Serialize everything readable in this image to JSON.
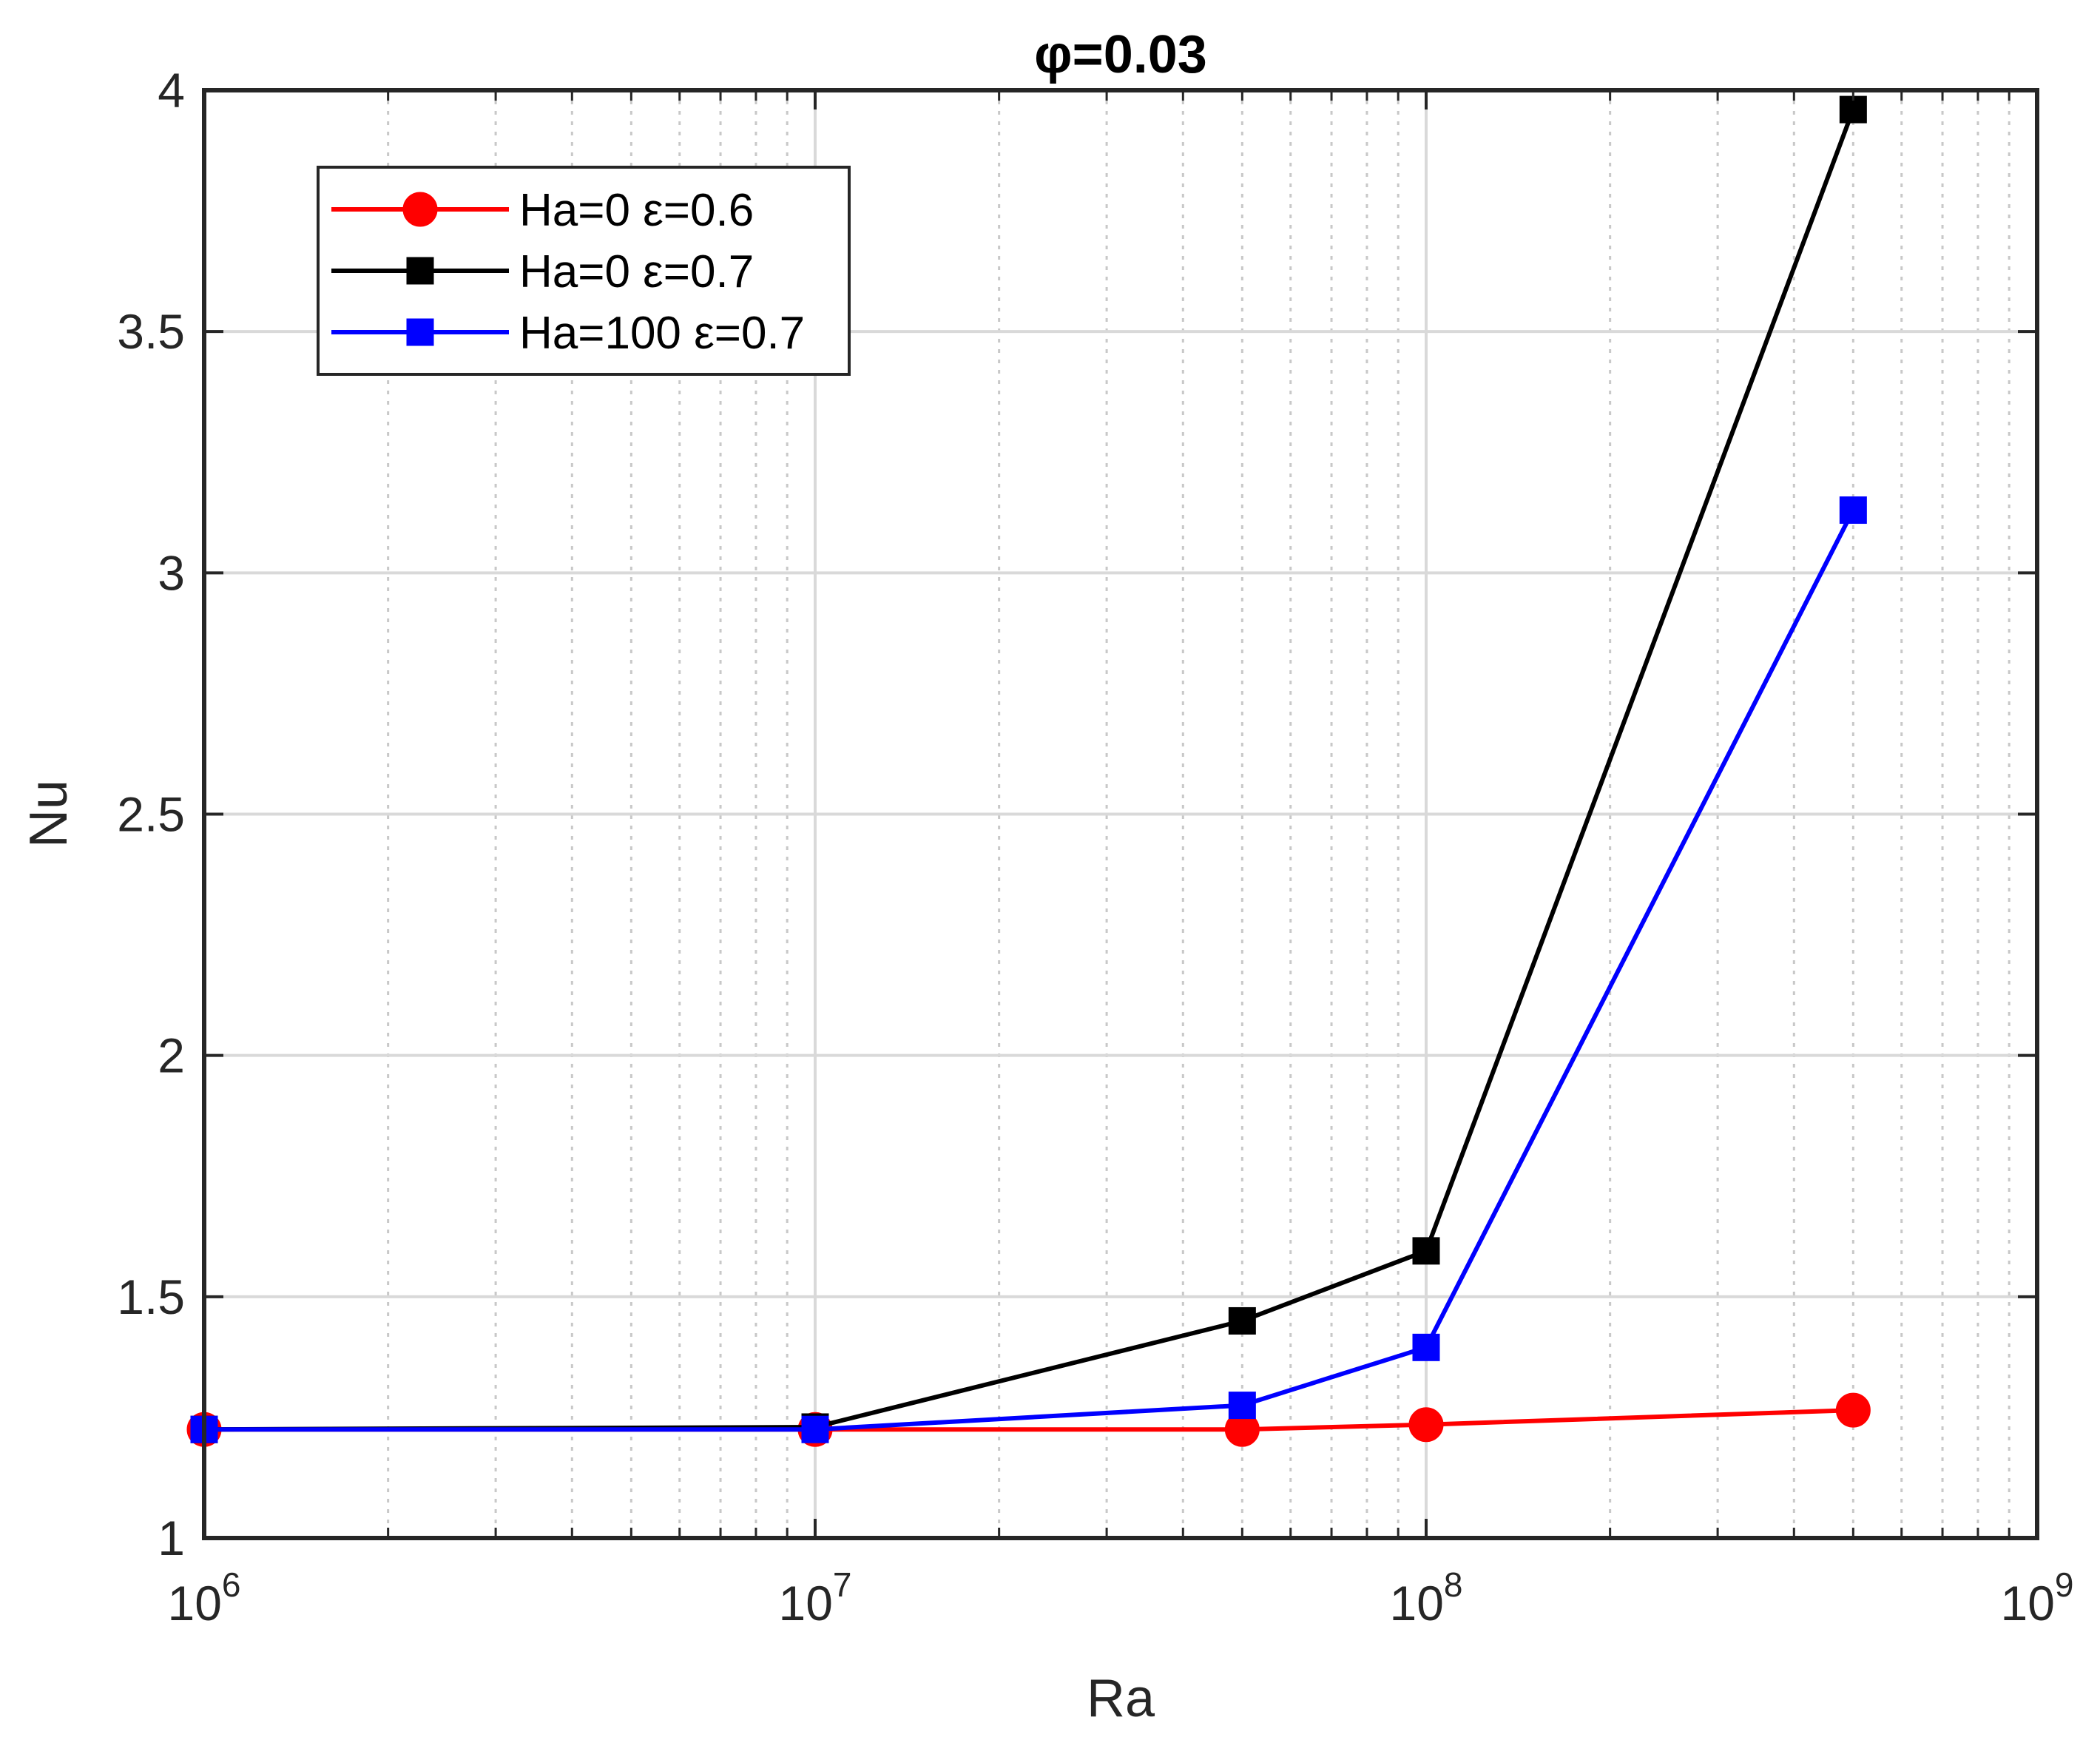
{
  "chart_data": {
    "type": "line",
    "title": "φ=0.03",
    "xlabel": "Ra",
    "ylabel": "Nu",
    "xscale": "log",
    "xlim": [
      1000000,
      1000000000
    ],
    "ylim": [
      1,
      4
    ],
    "grid": true,
    "x_tick_labels": [
      {
        "base": "10",
        "exp": "6",
        "value": 1000000
      },
      {
        "base": "10",
        "exp": "7",
        "value": 10000000
      },
      {
        "base": "10",
        "exp": "8",
        "value": 100000000
      },
      {
        "base": "10",
        "exp": "9",
        "value": 1000000000
      }
    ],
    "y_ticks": [
      1,
      1.5,
      2,
      2.5,
      3,
      3.5,
      4
    ],
    "y_tick_labels": [
      "1",
      "1.5",
      "2",
      "2.5",
      "3",
      "3.5",
      "4"
    ],
    "legend_position": "top-left",
    "series": [
      {
        "name": "Ha=0 ε=0.6",
        "color": "#ff0000",
        "marker": "circle",
        "x": [
          1000000,
          10000000,
          50000000,
          100000000,
          500000000
        ],
        "y": [
          1.225,
          1.225,
          1.225,
          1.235,
          1.265
        ]
      },
      {
        "name": "Ha=0 ε=0.7",
        "color": "#000000",
        "marker": "square",
        "x": [
          1000000,
          10000000,
          50000000,
          100000000,
          500000000
        ],
        "y": [
          1.225,
          1.23,
          1.45,
          1.595,
          3.96
        ]
      },
      {
        "name": "Ha=100 ε=0.7",
        "color": "#0000ff",
        "marker": "square",
        "x": [
          1000000,
          10000000,
          50000000,
          100000000,
          500000000
        ],
        "y": [
          1.225,
          1.225,
          1.275,
          1.395,
          3.13
        ]
      }
    ]
  }
}
